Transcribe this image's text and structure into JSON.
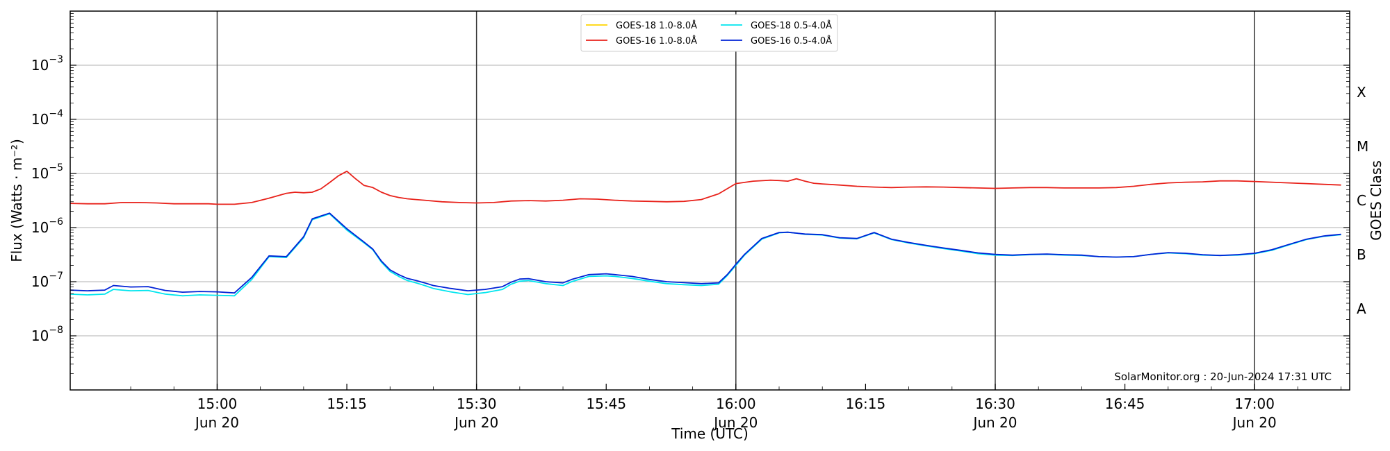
{
  "chart_data": {
    "type": "line",
    "xlabel": "Time (UTC)",
    "ylabel": "Flux (Watts · m⁻²)",
    "right_axis_label": "GOES Class",
    "y_scale": "log",
    "xlim": [
      "2024-06-20 14:43",
      "2024-06-20 17:11"
    ],
    "ylim": [
      1e-09,
      0.01
    ],
    "grid": "horizontal at decades",
    "legend_placement": "top-center",
    "watermark": "SolarMonitor.org : 20-Jun-2024 17:31 UTC",
    "x_ticks": [
      {
        "time": "15:00",
        "line1": "15:00",
        "line2": "Jun 20",
        "major": true
      },
      {
        "time": "15:15",
        "line1": "15:15",
        "line2": "",
        "major": false
      },
      {
        "time": "15:30",
        "line1": "15:30",
        "line2": "Jun 20",
        "major": true
      },
      {
        "time": "15:45",
        "line1": "15:45",
        "line2": "",
        "major": false
      },
      {
        "time": "16:00",
        "line1": "16:00",
        "line2": "Jun 20",
        "major": true
      },
      {
        "time": "16:15",
        "line1": "16:15",
        "line2": "",
        "major": false
      },
      {
        "time": "16:30",
        "line1": "16:30",
        "line2": "Jun 20",
        "major": true
      },
      {
        "time": "16:45",
        "line1": "16:45",
        "line2": "",
        "major": false
      },
      {
        "time": "17:00",
        "line1": "17:00",
        "line2": "Jun 20",
        "major": true
      }
    ],
    "y_ticks": [
      {
        "value": 1e-08,
        "base": "10",
        "exp": "−8"
      },
      {
        "value": 1e-07,
        "base": "10",
        "exp": "−7"
      },
      {
        "value": 1e-06,
        "base": "10",
        "exp": "−6"
      },
      {
        "value": 1e-05,
        "base": "10",
        "exp": "−5"
      },
      {
        "value": 0.0001,
        "base": "10",
        "exp": "−4"
      },
      {
        "value": 0.001,
        "base": "10",
        "exp": "−3"
      }
    ],
    "goes_classes": [
      {
        "label": "A",
        "value": 3.16e-08
      },
      {
        "label": "B",
        "value": 3.16e-07
      },
      {
        "label": "C",
        "value": 3.16e-06
      },
      {
        "label": "M",
        "value": 3.16e-05
      },
      {
        "label": "X",
        "value": 0.000316
      }
    ],
    "series": [
      {
        "name": "GOES-18 1.0-8.0Å",
        "color": "#ffd400",
        "x": [],
        "values": []
      },
      {
        "name": "GOES-18 0.5-4.0Å",
        "color": "#00e5ee",
        "x": [
          "14:43",
          "14:45",
          "14:47",
          "14:48",
          "14:50",
          "14:52",
          "14:54",
          "14:56",
          "14:58",
          "15:00",
          "15:02",
          "15:04",
          "15:06",
          "15:08",
          "15:10",
          "15:11",
          "15:13",
          "15:15",
          "15:17",
          "15:18",
          "15:19",
          "15:20",
          "15:21",
          "15:22",
          "15:23",
          "15:24",
          "15:25",
          "15:27",
          "15:29",
          "15:31",
          "15:33",
          "15:34",
          "15:35",
          "15:36",
          "15:38",
          "15:40",
          "15:41",
          "15:43",
          "15:45",
          "15:46",
          "15:48",
          "15:50",
          "15:52",
          "15:54",
          "15:56",
          "15:58",
          "15:59",
          "16:00",
          "16:01",
          "16:03",
          "16:05",
          "16:06",
          "16:07",
          "16:08",
          "16:10",
          "16:12",
          "16:14",
          "16:16",
          "16:18",
          "16:20",
          "16:22",
          "16:24",
          "16:26",
          "16:28",
          "16:30",
          "16:32",
          "16:34",
          "16:36",
          "16:38",
          "16:40",
          "16:42",
          "16:44",
          "16:46",
          "16:48",
          "16:50",
          "16:52",
          "16:54",
          "16:56",
          "16:58",
          "17:00",
          "17:02",
          "17:04",
          "17:06",
          "17:08",
          "17:10"
        ],
        "values": [
          5.9e-08,
          5.7e-08,
          5.9e-08,
          7.2e-08,
          6.8e-08,
          6.9e-08,
          5.9e-08,
          5.5e-08,
          5.7e-08,
          5.6e-08,
          5.5e-08,
          1.1e-07,
          2.9e-07,
          2.8e-07,
          6.5e-07,
          1.4e-06,
          1.8e-06,
          9e-07,
          5.2e-07,
          3.9e-07,
          2.3e-07,
          1.55e-07,
          1.25e-07,
          1.05e-07,
          9.5e-08,
          8.5e-08,
          7.5e-08,
          6.5e-08,
          5.8e-08,
          6.3e-08,
          7.2e-08,
          9e-08,
          1.02e-07,
          1.05e-07,
          9.2e-08,
          8.5e-08,
          1e-07,
          1.25e-07,
          1.28e-07,
          1.25e-07,
          1.15e-07,
          1.02e-07,
          9.2e-08,
          8.8e-08,
          8.5e-08,
          9e-08,
          1.3e-07,
          2e-07,
          3.1e-07,
          6.1e-07,
          8e-07,
          8.2e-07,
          7.9e-07,
          7.5e-07,
          7.3e-07,
          6.4e-07,
          6.2e-07,
          8e-07,
          6e-07,
          5.2e-07,
          4.6e-07,
          4.1e-07,
          3.7e-07,
          3.3e-07,
          3.1e-07,
          3.05e-07,
          3.15e-07,
          3.2e-07,
          3.1e-07,
          3.05e-07,
          2.9e-07,
          2.85e-07,
          2.9e-07,
          3.2e-07,
          3.4e-07,
          3.3e-07,
          3.1e-07,
          3.05e-07,
          3.1e-07,
          3.3e-07,
          3.8e-07,
          4.8e-07,
          6e-07,
          6.9e-07,
          7.4e-07
        ],
        "note_values_tail": []
      },
      {
        "name": "GOES-16 1.0-8.0Å",
        "color": "#e8221b",
        "x": [
          "14:43",
          "14:45",
          "14:47",
          "14:49",
          "14:51",
          "14:53",
          "14:55",
          "14:57",
          "14:59",
          "15:00",
          "15:02",
          "15:04",
          "15:06",
          "15:08",
          "15:09",
          "15:10",
          "15:11",
          "15:12",
          "15:13",
          "15:14",
          "15:15",
          "15:16",
          "15:17",
          "15:18",
          "15:19",
          "15:20",
          "15:21",
          "15:22",
          "15:23",
          "15:24",
          "15:26",
          "15:28",
          "15:30",
          "15:32",
          "15:34",
          "15:36",
          "15:38",
          "15:40",
          "15:42",
          "15:44",
          "15:46",
          "15:48",
          "15:50",
          "15:52",
          "15:54",
          "15:56",
          "15:58",
          "16:00",
          "16:02",
          "16:04",
          "16:05",
          "16:06",
          "16:07",
          "16:08",
          "16:09",
          "16:10",
          "16:12",
          "16:14",
          "16:16",
          "16:18",
          "16:20",
          "16:22",
          "16:24",
          "16:26",
          "16:28",
          "16:30",
          "16:32",
          "16:34",
          "16:36",
          "16:38",
          "16:40",
          "16:42",
          "16:44",
          "16:46",
          "16:48",
          "16:50",
          "16:52",
          "16:54",
          "16:56",
          "16:58",
          "17:00",
          "17:02",
          "17:04",
          "17:06",
          "17:08",
          "17:10"
        ],
        "values": [
          2.8e-06,
          2.75e-06,
          2.75e-06,
          2.9e-06,
          2.9e-06,
          2.85e-06,
          2.75e-06,
          2.75e-06,
          2.75e-06,
          2.7e-06,
          2.7e-06,
          2.9e-06,
          3.5e-06,
          4.3e-06,
          4.5e-06,
          4.4e-06,
          4.5e-06,
          5.2e-06,
          6.8e-06,
          9e-06,
          1.1e-05,
          8e-06,
          6e-06,
          5.5e-06,
          4.5e-06,
          3.9e-06,
          3.6e-06,
          3.4e-06,
          3.3e-06,
          3.2e-06,
          3e-06,
          2.9e-06,
          2.85e-06,
          2.9e-06,
          3.1e-06,
          3.15e-06,
          3.1e-06,
          3.2e-06,
          3.4e-06,
          3.35e-06,
          3.2e-06,
          3.1e-06,
          3.05e-06,
          3e-06,
          3.05e-06,
          3.3e-06,
          4.2e-06,
          6.5e-06,
          7.2e-06,
          7.5e-06,
          7.4e-06,
          7.2e-06,
          8e-06,
          7.2e-06,
          6.6e-06,
          6.4e-06,
          6.1e-06,
          5.8e-06,
          5.6e-06,
          5.5e-06,
          5.6e-06,
          5.65e-06,
          5.6e-06,
          5.5e-06,
          5.4e-06,
          5.3e-06,
          5.4e-06,
          5.5e-06,
          5.5e-06,
          5.4e-06,
          5.4e-06,
          5.4e-06,
          5.5e-06,
          5.8e-06,
          6.3e-06,
          6.7e-06,
          6.9e-06,
          7e-06,
          7.3e-06,
          7.3e-06,
          7.1e-06,
          6.9e-06,
          6.7e-06,
          6.5e-06,
          6.3e-06,
          6.1e-06
        ]
      },
      {
        "name": "GOES-16 0.5-4.0Å",
        "color": "#0022d6",
        "x": [
          "14:43",
          "14:45",
          "14:47",
          "14:48",
          "14:50",
          "14:52",
          "14:54",
          "14:56",
          "14:58",
          "15:00",
          "15:02",
          "15:04",
          "15:06",
          "15:08",
          "15:10",
          "15:11",
          "15:13",
          "15:15",
          "15:17",
          "15:18",
          "15:19",
          "15:20",
          "15:21",
          "15:22",
          "15:23",
          "15:24",
          "15:25",
          "15:27",
          "15:29",
          "15:31",
          "15:33",
          "15:34",
          "15:35",
          "15:36",
          "15:38",
          "15:40",
          "15:41",
          "15:43",
          "15:45",
          "15:46",
          "15:48",
          "15:50",
          "15:52",
          "15:54",
          "15:56",
          "15:58",
          "15:59",
          "16:00",
          "16:01",
          "16:03",
          "16:05",
          "16:06",
          "16:07",
          "16:08",
          "16:10",
          "16:12",
          "16:14",
          "16:16",
          "16:18",
          "16:20",
          "16:22",
          "16:24",
          "16:26",
          "16:28",
          "16:30",
          "16:32",
          "16:34",
          "16:36",
          "16:38",
          "16:40",
          "16:42",
          "16:44",
          "16:46",
          "16:48",
          "16:50",
          "16:52",
          "16:54",
          "16:56",
          "16:58",
          "17:00",
          "17:02",
          "17:04",
          "17:06",
          "17:08",
          "17:10"
        ],
        "values": [
          7e-08,
          6.8e-08,
          7e-08,
          8.5e-08,
          8e-08,
          8.1e-08,
          6.9e-08,
          6.4e-08,
          6.6e-08,
          6.5e-08,
          6.2e-08,
          1.2e-07,
          3e-07,
          2.9e-07,
          6.8e-07,
          1.45e-06,
          1.85e-06,
          9.5e-07,
          5.4e-07,
          4e-07,
          2.4e-07,
          1.65e-07,
          1.35e-07,
          1.15e-07,
          1.05e-07,
          9.5e-08,
          8.5e-08,
          7.5e-08,
          6.8e-08,
          7.2e-08,
          8.1e-08,
          9.8e-08,
          1.12e-07,
          1.14e-07,
          1e-07,
          9.5e-08,
          1.1e-07,
          1.35e-07,
          1.4e-07,
          1.35e-07,
          1.25e-07,
          1.1e-07,
          1e-07,
          9.6e-08,
          9.2e-08,
          9.5e-08,
          1.35e-07,
          2.1e-07,
          3.2e-07,
          6.3e-07,
          8.1e-07,
          8.2e-07,
          7.9e-07,
          7.6e-07,
          7.4e-07,
          6.5e-07,
          6.3e-07,
          8.1e-07,
          6.1e-07,
          5.3e-07,
          4.7e-07,
          4.2e-07,
          3.8e-07,
          3.4e-07,
          3.2e-07,
          3.1e-07,
          3.2e-07,
          3.25e-07,
          3.15e-07,
          3.1e-07,
          2.9e-07,
          2.85e-07,
          2.9e-07,
          3.2e-07,
          3.45e-07,
          3.35e-07,
          3.15e-07,
          3.05e-07,
          3.15e-07,
          3.35e-07,
          3.9e-07,
          4.9e-07,
          6.1e-07,
          7e-07,
          7.5e-07
        ]
      }
    ]
  }
}
